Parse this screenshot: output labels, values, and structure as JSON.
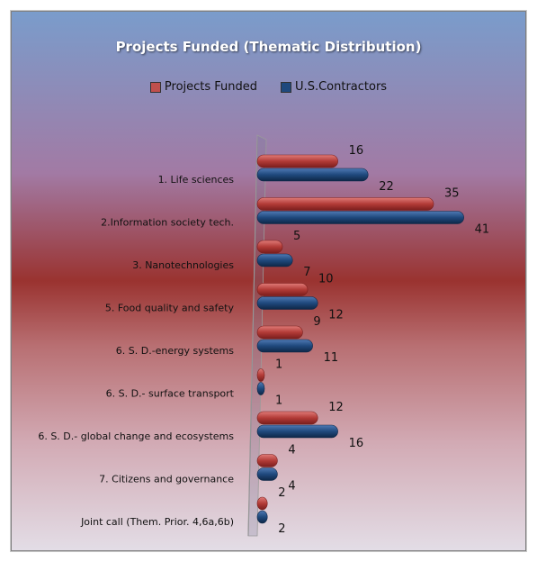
{
  "chart_data": {
    "type": "bar",
    "title": "Projects Funded (Thematic Distribution)",
    "orientation": "horizontal",
    "categories": [
      "1. Life sciences",
      "2.Information society tech.",
      "3. Nanotechnologies",
      "5. Food quality and safety",
      "6. S. D.-energy systems",
      "6. S. D.- surface transport",
      "6. S. D.- global change and ecosystems",
      "7. Citizens and governance",
      "Joint call (Them. Prior. 4,6a,6b)"
    ],
    "series": [
      {
        "name": "Projects Funded",
        "values": [
          16,
          35,
          5,
          10,
          9,
          1,
          12,
          4,
          2
        ]
      },
      {
        "name": "U.S.Contractors",
        "values": [
          22,
          41,
          7,
          12,
          11,
          1,
          16,
          4,
          2
        ]
      }
    ],
    "colors": {
      "Projects Funded": "#c0504d",
      "U.S.Contractors": "#1f497d"
    },
    "legend_position": "top",
    "grid": false,
    "xlim": [
      0,
      41
    ]
  }
}
